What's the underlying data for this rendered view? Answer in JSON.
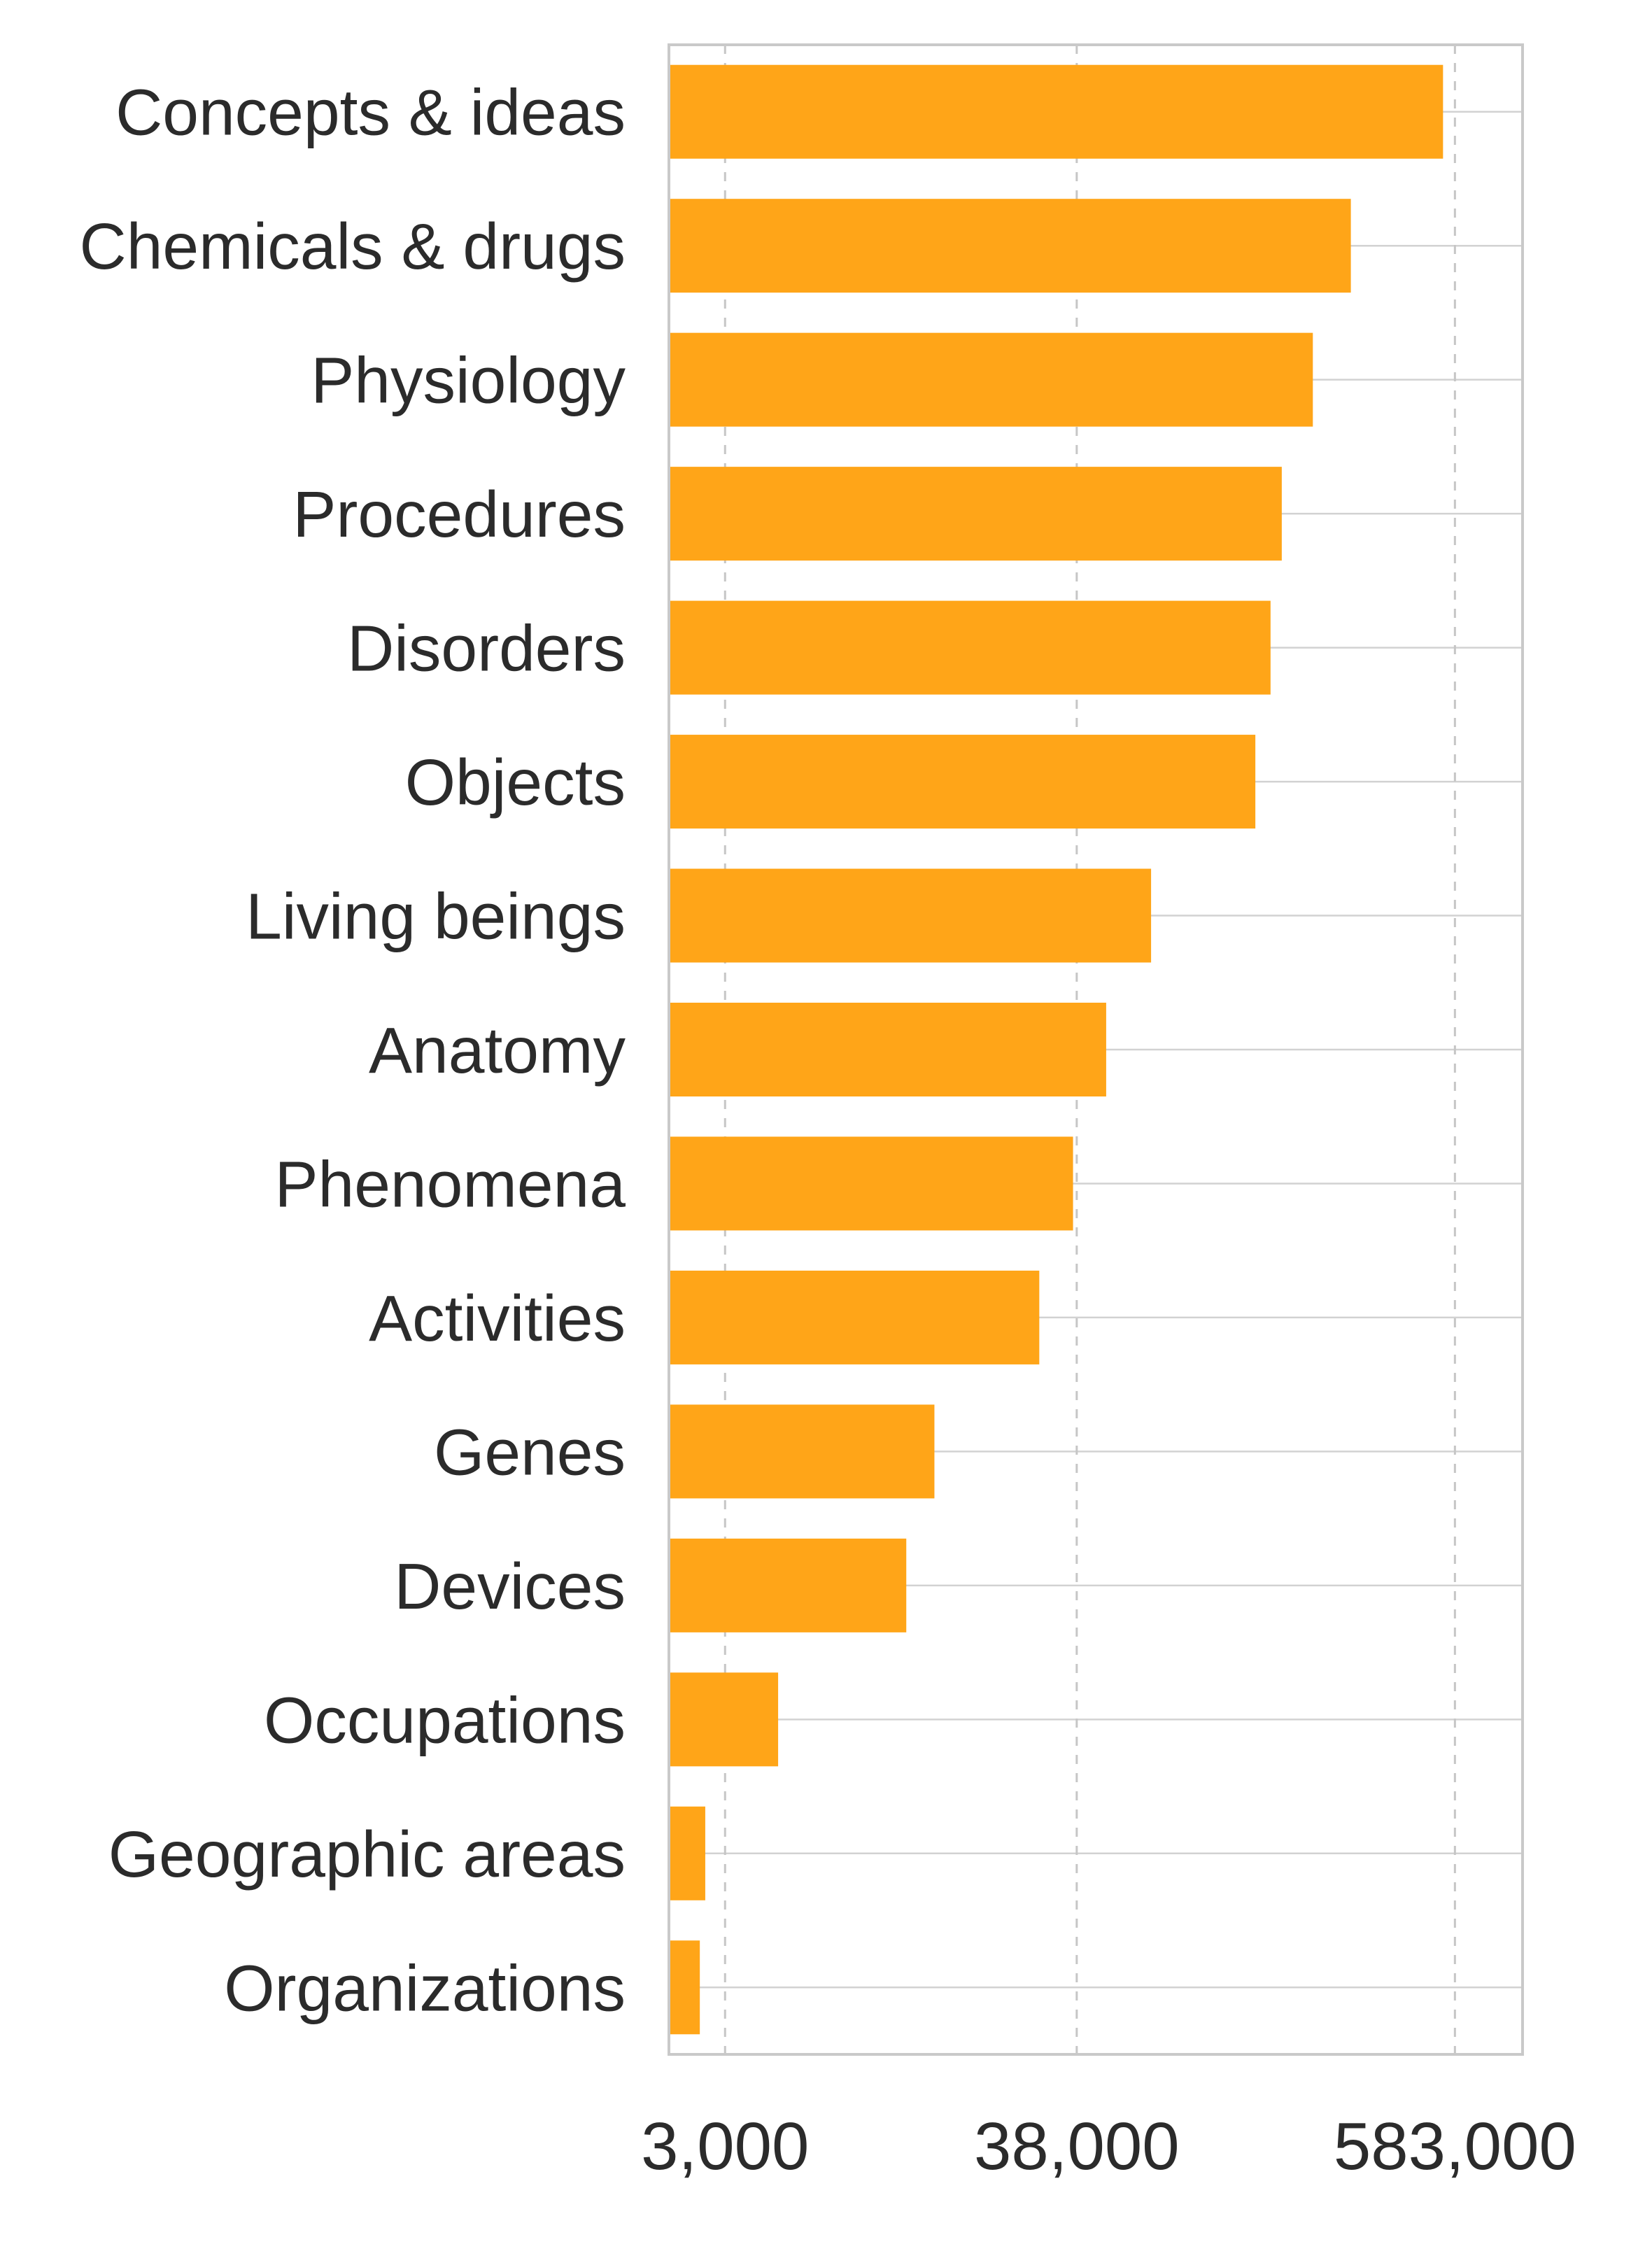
{
  "chart_data": {
    "type": "bar",
    "orientation": "horizontal",
    "x_scale": "log",
    "title": "",
    "xlabel": "",
    "ylabel": "",
    "categories": [
      "Concepts & ideas",
      "Chemicals & drugs",
      "Physiology",
      "Procedures",
      "Disorders",
      "Objects",
      "Living beings",
      "Anatomy",
      "Phenomena",
      "Activities",
      "Genes",
      "Devices",
      "Occupations",
      "Geographic areas",
      "Organizations"
    ],
    "values": [
      535000,
      275000,
      209000,
      167000,
      154000,
      138000,
      65000,
      47000,
      37000,
      29000,
      13600,
      11100,
      4400,
      2600,
      2500
    ],
    "x_ticks": [
      {
        "value": 3000,
        "label": "3,000"
      },
      {
        "value": 38000,
        "label": "38,000"
      },
      {
        "value": 583000,
        "label": "583,000"
      }
    ],
    "xlim": [
      2000,
      950000
    ],
    "grid": "on",
    "legend": "none",
    "style": {
      "bar_color": "#ffa518",
      "h_grid_color": "#d2d2d2",
      "v_grid_color": "#c6c6c6",
      "border_color": "#c9c9c9",
      "text_color": "#2b2b2b",
      "background": "#ffffff"
    }
  }
}
